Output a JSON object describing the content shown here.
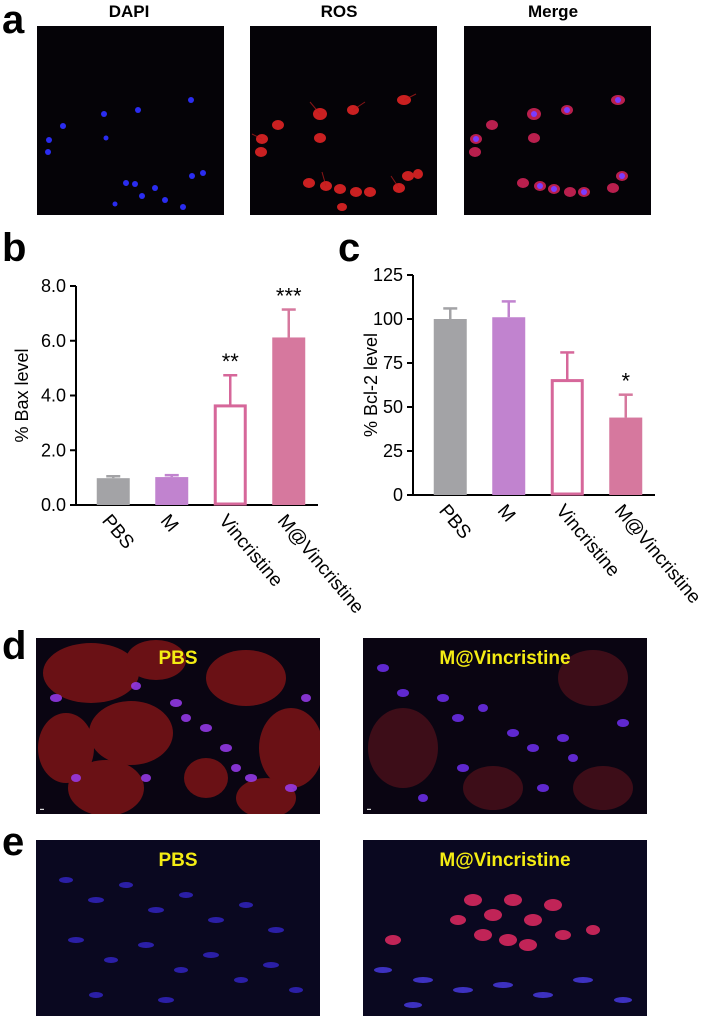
{
  "panels": {
    "a": {
      "letter": "a",
      "titles": [
        "DAPI",
        "ROS",
        "Merge"
      ]
    },
    "b": {
      "letter": "b"
    },
    "c": {
      "letter": "c"
    },
    "d": {
      "letter": "d",
      "labels": [
        "PBS",
        "M@Vincristine"
      ]
    },
    "e": {
      "letter": "e",
      "labels": [
        "PBS",
        "M@Vincristine"
      ]
    }
  },
  "colors": {
    "pbs": "#a3a3a6",
    "m": "#c183cf",
    "vincristine_outline": "#d6679a",
    "m_vincristine": "#d6789e",
    "tissue_label": "#f4ec13"
  },
  "chart_data": [
    {
      "panel": "b",
      "type": "bar",
      "ylabel": "% Bax level",
      "categories": [
        "PBS",
        "M",
        "Vincristine",
        "M@Vincristine"
      ],
      "values": [
        0.98,
        1.02,
        3.62,
        6.12
      ],
      "errors": [
        0.07,
        0.07,
        1.12,
        1.02
      ],
      "significance": [
        "",
        "",
        "**",
        "***"
      ],
      "ylim": [
        0,
        8
      ],
      "yticks": [
        "0.0",
        "2.0",
        "4.0",
        "6.0",
        "8.0"
      ],
      "grid": false
    },
    {
      "panel": "c",
      "type": "bar",
      "ylabel": "% Bcl-2 level",
      "categories": [
        "PBS",
        "M",
        "Vincristine",
        "M@Vincristine"
      ],
      "values": [
        100,
        101,
        65,
        44
      ],
      "errors": [
        6,
        9,
        16,
        13
      ],
      "significance": [
        "",
        "",
        "",
        "*"
      ],
      "ylim": [
        0,
        125
      ],
      "yticks": [
        "0",
        "25",
        "50",
        "75",
        "100",
        "125"
      ],
      "grid": false
    }
  ]
}
